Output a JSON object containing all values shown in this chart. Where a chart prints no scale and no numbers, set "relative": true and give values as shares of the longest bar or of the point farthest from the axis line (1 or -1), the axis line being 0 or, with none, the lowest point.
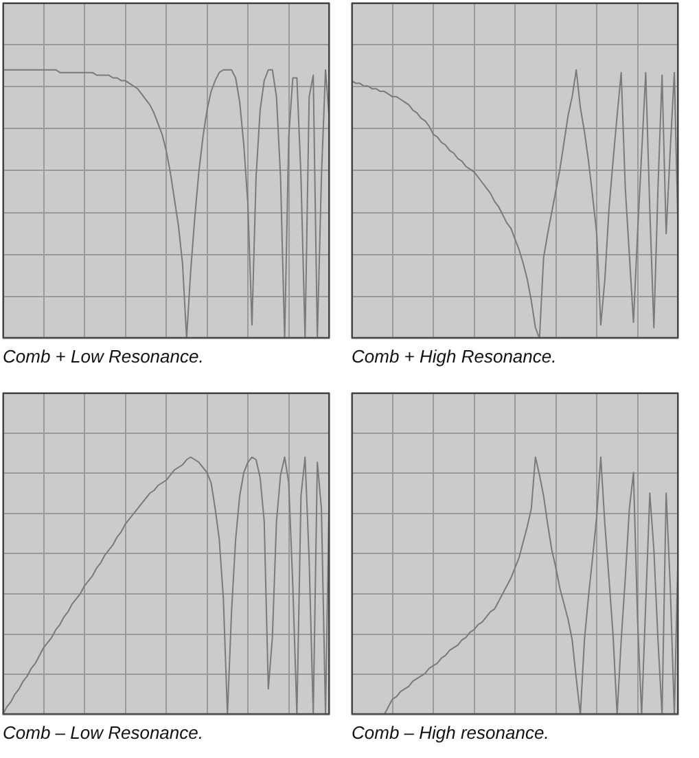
{
  "chart_data": [
    {
      "type": "line",
      "title": "Comb + Low Resonance.",
      "relative": true,
      "grid": true,
      "color": "#7a7a7a",
      "categories": [
        null,
        null,
        null,
        null,
        null,
        null,
        null,
        null,
        null,
        null,
        null,
        null,
        null,
        null,
        null,
        null,
        null,
        null,
        null,
        null,
        null,
        null,
        null,
        null,
        null,
        null,
        null,
        null,
        null,
        null,
        null,
        null,
        null,
        null,
        null,
        null,
        null,
        null,
        null,
        null,
        null,
        null,
        null,
        null,
        null,
        null,
        null,
        null,
        null,
        null,
        null,
        null,
        null,
        null,
        null,
        null,
        null,
        null,
        null,
        null,
        null,
        null,
        null,
        null,
        null,
        null,
        null,
        null,
        null,
        null,
        null,
        null,
        null,
        null,
        null,
        null,
        null,
        null,
        null,
        null,
        null
      ],
      "values": [
        1,
        1,
        1,
        1,
        1,
        1,
        1,
        1,
        1,
        1,
        1,
        1,
        1,
        1,
        0.99,
        0.99,
        0.99,
        0.99,
        0.99,
        0.99,
        0.99,
        0.99,
        0.99,
        0.98,
        0.98,
        0.98,
        0.98,
        0.97,
        0.97,
        0.96,
        0.96,
        0.95,
        0.94,
        0.93,
        0.91,
        0.89,
        0.87,
        0.84,
        0.8,
        0.76,
        0.7,
        0.62,
        0.52,
        0.42,
        0.28,
        0,
        0.25,
        0.45,
        0.62,
        0.75,
        0.85,
        0.92,
        0.96,
        0.99,
        1,
        1,
        1,
        0.97,
        0.88,
        0.72,
        0.5,
        0.05,
        0.6,
        0.85,
        0.96,
        1,
        1,
        0.9,
        0.6,
        0,
        0.75,
        0.97,
        0.97,
        0.6,
        0,
        0.9,
        0.98,
        0,
        0.6,
        1,
        0.8
      ]
    },
    {
      "type": "line",
      "title": "Comb + High Resonance.",
      "relative": true,
      "grid": true,
      "color": "#7a7a7a",
      "categories": [
        null,
        null,
        null,
        null,
        null,
        null,
        null,
        null,
        null,
        null,
        null,
        null,
        null,
        null,
        null,
        null,
        null,
        null,
        null,
        null,
        null,
        null,
        null,
        null,
        null,
        null,
        null,
        null,
        null,
        null,
        null,
        null,
        null,
        null,
        null,
        null,
        null,
        null,
        null,
        null,
        null,
        null,
        null,
        null,
        null,
        null,
        null,
        null,
        null,
        null,
        null,
        null,
        null,
        null,
        null,
        null,
        null,
        null,
        null,
        null,
        null,
        null,
        null,
        null,
        null,
        null,
        null,
        null,
        null,
        null,
        null,
        null,
        null,
        null,
        null,
        null,
        null,
        null,
        null,
        null,
        null
      ],
      "values": [
        0.96,
        0.95,
        0.95,
        0.94,
        0.94,
        0.93,
        0.93,
        0.92,
        0.92,
        0.91,
        0.9,
        0.9,
        0.89,
        0.88,
        0.87,
        0.85,
        0.84,
        0.82,
        0.81,
        0.79,
        0.76,
        0.75,
        0.73,
        0.72,
        0.7,
        0.69,
        0.67,
        0.66,
        0.64,
        0.63,
        0.62,
        0.6,
        0.58,
        0.56,
        0.54,
        0.51,
        0.49,
        0.46,
        0.43,
        0.41,
        0.37,
        0.33,
        0.28,
        0.22,
        0.14,
        0.04,
        0,
        0.3,
        0.39,
        0.47,
        0.55,
        0.63,
        0.73,
        0.83,
        0.9,
        1,
        0.86,
        0.77,
        0.66,
        0.53,
        0.39,
        0.05,
        0.22,
        0.48,
        0.66,
        0.83,
        0.99,
        0.56,
        0.31,
        0.06,
        0.39,
        0.69,
        0.99,
        0.48,
        0.04,
        0.56,
        0.98,
        0.39,
        0.7,
        0.99,
        0.34
      ]
    },
    {
      "type": "line",
      "title": "Comb – Low Resonance.",
      "relative": true,
      "grid": true,
      "color": "#7a7a7a",
      "categories": [
        null,
        null,
        null,
        null,
        null,
        null,
        null,
        null,
        null,
        null,
        null,
        null,
        null,
        null,
        null,
        null,
        null,
        null,
        null,
        null,
        null,
        null,
        null,
        null,
        null,
        null,
        null,
        null,
        null,
        null,
        null,
        null,
        null,
        null,
        null,
        null,
        null,
        null,
        null,
        null,
        null,
        null,
        null,
        null,
        null,
        null,
        null,
        null,
        null,
        null,
        null,
        null,
        null,
        null,
        null,
        null,
        null,
        null,
        null,
        null,
        null,
        null,
        null,
        null,
        null,
        null,
        null,
        null,
        null,
        null,
        null,
        null,
        null,
        null,
        null,
        null,
        null,
        null,
        null,
        null,
        null
      ],
      "values": [
        0,
        0.03,
        0.05,
        0.08,
        0.1,
        0.13,
        0.15,
        0.18,
        0.2,
        0.23,
        0.26,
        0.28,
        0.3,
        0.33,
        0.35,
        0.38,
        0.4,
        0.43,
        0.45,
        0.47,
        0.5,
        0.52,
        0.54,
        0.57,
        0.59,
        0.62,
        0.64,
        0.66,
        0.69,
        0.71,
        0.74,
        0.76,
        0.78,
        0.8,
        0.82,
        0.84,
        0.86,
        0.87,
        0.89,
        0.9,
        0.91,
        0.93,
        0.95,
        0.96,
        0.97,
        0.99,
        1,
        0.99,
        0.98,
        0.96,
        0.94,
        0.9,
        0.8,
        0.68,
        0.45,
        0,
        0.4,
        0.68,
        0.85,
        0.94,
        0.98,
        1,
        0.99,
        0.92,
        0.75,
        0.1,
        0.3,
        0.75,
        0.93,
        1,
        0.9,
        0.5,
        0,
        0.85,
        1,
        0.6,
        0,
        0.98,
        0.8,
        0,
        0.95
      ]
    },
    {
      "type": "line",
      "title": "Comb – High resonance.",
      "relative": true,
      "grid": true,
      "color": "#7a7a7a",
      "categories": [
        null,
        null,
        null,
        null,
        null,
        null,
        null,
        null,
        null,
        null,
        null,
        null,
        null,
        null,
        null,
        null,
        null,
        null,
        null,
        null,
        null,
        null,
        null,
        null,
        null,
        null,
        null,
        null,
        null,
        null,
        null,
        null,
        null,
        null,
        null,
        null,
        null,
        null,
        null,
        null,
        null,
        null,
        null,
        null,
        null,
        null,
        null,
        null,
        null,
        null,
        null,
        null,
        null,
        null,
        null,
        null,
        null,
        null,
        null,
        null,
        null,
        null,
        null,
        null,
        null,
        null,
        null,
        null,
        null,
        null,
        null,
        null,
        null,
        null,
        null,
        null,
        null,
        null,
        null,
        null,
        null
      ],
      "values": [
        null,
        null,
        null,
        null,
        null,
        null,
        null,
        null,
        0,
        0.03,
        0.06,
        0.07,
        0.09,
        0.1,
        0.11,
        0.13,
        0.14,
        0.15,
        0.16,
        0.18,
        0.19,
        0.2,
        0.22,
        0.23,
        0.25,
        0.26,
        0.27,
        0.29,
        0.3,
        0.32,
        0.33,
        0.35,
        0.36,
        0.38,
        0.4,
        0.41,
        0.44,
        0.47,
        0.5,
        0.53,
        0.57,
        0.61,
        0.67,
        0.73,
        0.8,
        1,
        0.93,
        0.85,
        0.74,
        0.64,
        0.57,
        0.49,
        0.43,
        0.37,
        0.29,
        0.14,
        0,
        0.29,
        0.46,
        0.61,
        0.77,
        1,
        0.74,
        0.53,
        0.31,
        0,
        0.29,
        0.53,
        0.8,
        0.94,
        0.37,
        0,
        0.43,
        0.86,
        0.64,
        0.29,
        0,
        0.86,
        0.5,
        0,
        0.69
      ]
    }
  ]
}
